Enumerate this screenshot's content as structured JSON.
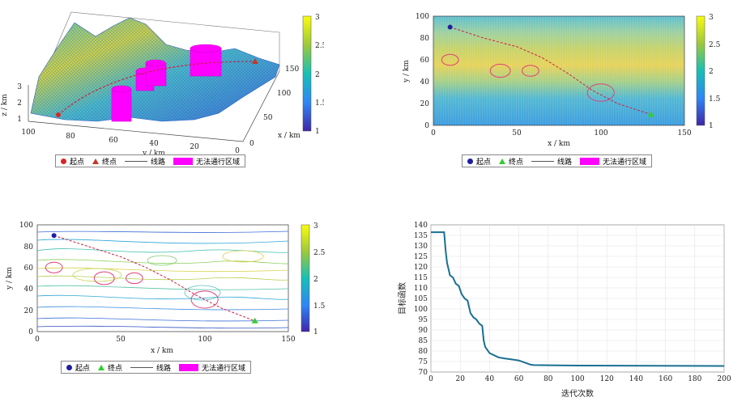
{
  "legend": {
    "start": "起点",
    "end": "终点",
    "route": "线路",
    "no_pass": "无法通行区域"
  },
  "colors": {
    "start_3d": "#d62728",
    "end_3d": "#c0392b",
    "start_2d": "#1f1fa0",
    "end_2d": "#33cc33",
    "route": "#cc2244",
    "circles": "#e0407a",
    "no_pass": "#ff00ff",
    "convergence": "#1a6f91"
  },
  "colorbar": {
    "ticks": [
      "3",
      "2.5",
      "2",
      "1.5",
      "1"
    ],
    "min": 1,
    "max": 3
  },
  "chart_data": [
    {
      "type": "surface3d",
      "xlabel": "x / km",
      "ylabel": "y / km",
      "zlabel": "z / km",
      "x_ticks": [
        "150",
        "100",
        "50",
        "0"
      ],
      "y_ticks": [
        "100",
        "80",
        "60",
        "40",
        "20",
        "0"
      ],
      "z_ticks": [
        "3",
        "2",
        "1"
      ],
      "start": {
        "x": 10,
        "y": 90
      },
      "end": {
        "x": 130,
        "y": 10
      }
    },
    {
      "type": "heatmap",
      "xlabel": "x / km",
      "ylabel": "y / km",
      "xlim": [
        0,
        150
      ],
      "ylim": [
        0,
        100
      ],
      "x_ticks": [
        "0",
        "50",
        "100",
        "150"
      ],
      "y_ticks": [
        "0",
        "20",
        "40",
        "60",
        "80",
        "100"
      ],
      "start": {
        "x": 10,
        "y": 90
      },
      "end": {
        "x": 130,
        "y": 10
      },
      "route": [
        [
          10,
          90
        ],
        [
          30,
          80
        ],
        [
          50,
          72
        ],
        [
          65,
          62
        ],
        [
          80,
          48
        ],
        [
          95,
          32
        ],
        [
          110,
          20
        ],
        [
          130,
          10
        ]
      ],
      "no_pass_circles": [
        {
          "cx": 10,
          "cy": 60,
          "r": 5
        },
        {
          "cx": 40,
          "cy": 50,
          "r": 6
        },
        {
          "cx": 58,
          "cy": 50,
          "r": 5
        },
        {
          "cx": 100,
          "cy": 30,
          "r": 8
        }
      ]
    },
    {
      "type": "contour",
      "xlabel": "x / km",
      "ylabel": "y / km",
      "xlim": [
        0,
        150
      ],
      "ylim": [
        0,
        100
      ],
      "x_ticks": [
        "0",
        "50",
        "100",
        "150"
      ],
      "y_ticks": [
        "0",
        "20",
        "40",
        "60",
        "80",
        "100"
      ],
      "start": {
        "x": 10,
        "y": 90
      },
      "end": {
        "x": 130,
        "y": 10
      },
      "route": [
        [
          10,
          90
        ],
        [
          30,
          80
        ],
        [
          50,
          70
        ],
        [
          65,
          60
        ],
        [
          80,
          48
        ],
        [
          95,
          34
        ],
        [
          110,
          22
        ],
        [
          130,
          10
        ]
      ],
      "no_pass_circles": [
        {
          "cx": 10,
          "cy": 60,
          "r": 5
        },
        {
          "cx": 40,
          "cy": 50,
          "r": 6
        },
        {
          "cx": 58,
          "cy": 50,
          "r": 5
        },
        {
          "cx": 100,
          "cy": 30,
          "r": 8
        }
      ]
    },
    {
      "type": "line",
      "xlabel": "迭代次数",
      "ylabel": "目标函数",
      "xlim": [
        0,
        200
      ],
      "ylim": [
        70,
        140
      ],
      "x_ticks": [
        "0",
        "20",
        "40",
        "60",
        "80",
        "100",
        "120",
        "140",
        "160",
        "180",
        "200"
      ],
      "y_ticks": [
        "70",
        "75",
        "80",
        "85",
        "90",
        "95",
        "100",
        "105",
        "110",
        "115",
        "120",
        "125",
        "130",
        "135",
        "140"
      ],
      "grid": true,
      "series": [
        {
          "x": [
            0,
            9,
            10,
            11,
            12,
            13,
            15,
            17,
            19,
            21,
            23,
            25,
            27,
            29,
            31,
            33,
            35,
            36,
            37,
            38,
            40,
            43,
            46,
            50,
            55,
            60,
            64,
            66,
            68,
            70,
            80,
            100,
            150,
            200
          ],
          "y": [
            136.5,
            136.5,
            128,
            122,
            119,
            116,
            115,
            112,
            111,
            107,
            105,
            104,
            98,
            96,
            95,
            93,
            92,
            85,
            82,
            81,
            79,
            78,
            77,
            76.5,
            76,
            75.5,
            74.5,
            74,
            73.5,
            73.3,
            73.2,
            73.1,
            73.0,
            72.9
          ]
        }
      ]
    }
  ]
}
